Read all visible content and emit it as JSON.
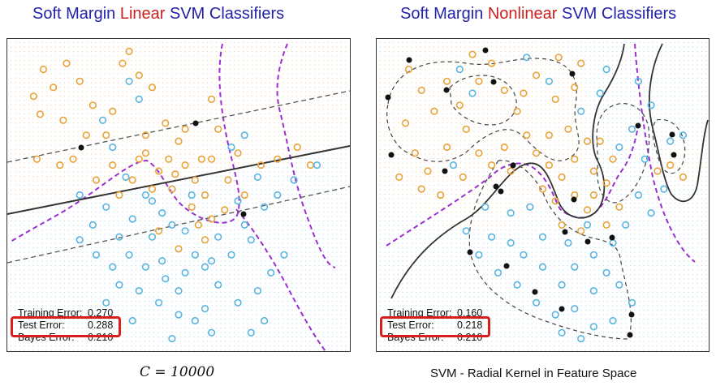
{
  "left": {
    "title_pre": "Soft Margin ",
    "title_hl": "Linear",
    "title_post": " SVM Classifiers",
    "errors": [
      {
        "label": "Training Error:",
        "value": "0.270"
      },
      {
        "label": "Test Error:",
        "value": "0.288"
      },
      {
        "label": "Bayes Error:",
        "value": "0.210"
      }
    ],
    "caption": "C = 10000"
  },
  "right": {
    "title_pre": "Soft Margin ",
    "title_hl": "Nonlinear",
    "title_post": " SVM Classifiers",
    "errors": [
      {
        "label": "Training Error:",
        "value": "0.160"
      },
      {
        "label": "Test Error:",
        "value": "0.218"
      },
      {
        "label": "Bayes Error:",
        "value": "0.210"
      }
    ],
    "caption": "SVM - Radial Kernel in Feature Space"
  },
  "colors": {
    "title": "#2222aa",
    "title_highlight": "#cc1f1f",
    "orange": "#e8a23a",
    "blue": "#5ab4e0",
    "bayes": "#9b30d0",
    "boundary": "#333333",
    "test_box": "#d81e1e"
  },
  "chart_data": [
    {
      "type": "scatter",
      "title": "Soft Margin Linear SVM Classifiers",
      "xlim": [
        0,
        1
      ],
      "ylim": [
        0,
        1
      ],
      "series": [
        {
          "name": "orange",
          "points": [
            [
              0.06,
              0.83
            ],
            [
              0.08,
              0.77
            ],
            [
              0.12,
              0.86
            ],
            [
              0.15,
              0.75
            ],
            [
              0.09,
              0.92
            ],
            [
              0.2,
              0.88
            ],
            [
              0.24,
              0.8
            ],
            [
              0.28,
              0.7
            ],
            [
              0.18,
              0.62
            ],
            [
              0.3,
              0.6
            ],
            [
              0.36,
              0.55
            ],
            [
              0.4,
              0.64
            ],
            [
              0.44,
              0.58
            ],
            [
              0.33,
              0.94
            ],
            [
              0.38,
              0.9
            ],
            [
              0.42,
              0.86
            ],
            [
              0.46,
              0.74
            ],
            [
              0.5,
              0.68
            ],
            [
              0.52,
              0.6
            ],
            [
              0.55,
              0.55
            ],
            [
              0.58,
              0.5
            ],
            [
              0.6,
              0.62
            ],
            [
              0.62,
              0.72
            ],
            [
              0.65,
              0.55
            ],
            [
              0.48,
              0.52
            ],
            [
              0.54,
              0.46
            ],
            [
              0.56,
              0.4
            ],
            [
              0.6,
              0.42
            ],
            [
              0.64,
              0.45
            ],
            [
              0.7,
              0.5
            ],
            [
              0.75,
              0.6
            ],
            [
              0.8,
              0.62
            ],
            [
              0.86,
              0.66
            ],
            [
              0.9,
              0.6
            ],
            [
              0.25,
              0.55
            ],
            [
              0.14,
              0.6
            ],
            [
              0.07,
              0.62
            ],
            [
              0.32,
              0.5
            ],
            [
              0.44,
              0.38
            ],
            [
              0.5,
              0.32
            ],
            [
              0.58,
              0.35
            ],
            [
              0.4,
              0.7
            ],
            [
              0.22,
              0.7
            ],
            [
              0.3,
              0.78
            ],
            [
              0.16,
              0.94
            ],
            [
              0.35,
              0.98
            ],
            [
              0.47,
              0.62
            ],
            [
              0.52,
              0.72
            ],
            [
              0.6,
              0.82
            ],
            [
              0.68,
              0.64
            ],
            [
              0.38,
              0.62
            ],
            [
              0.42,
              0.52
            ],
            [
              0.57,
              0.62
            ],
            [
              0.49,
              0.57
            ]
          ]
        },
        {
          "name": "blue",
          "points": [
            [
              0.35,
              0.88
            ],
            [
              0.38,
              0.82
            ],
            [
              0.27,
              0.75
            ],
            [
              0.3,
              0.66
            ],
            [
              0.34,
              0.56
            ],
            [
              0.4,
              0.5
            ],
            [
              0.45,
              0.44
            ],
            [
              0.42,
              0.36
            ],
            [
              0.48,
              0.4
            ],
            [
              0.52,
              0.38
            ],
            [
              0.36,
              0.42
            ],
            [
              0.32,
              0.36
            ],
            [
              0.28,
              0.46
            ],
            [
              0.24,
              0.4
            ],
            [
              0.2,
              0.5
            ],
            [
              0.55,
              0.3
            ],
            [
              0.6,
              0.28
            ],
            [
              0.66,
              0.3
            ],
            [
              0.7,
              0.4
            ],
            [
              0.72,
              0.35
            ],
            [
              0.76,
              0.46
            ],
            [
              0.8,
              0.5
            ],
            [
              0.85,
              0.55
            ],
            [
              0.92,
              0.6
            ],
            [
              0.78,
              0.24
            ],
            [
              0.74,
              0.18
            ],
            [
              0.68,
              0.14
            ],
            [
              0.62,
              0.2
            ],
            [
              0.58,
              0.12
            ],
            [
              0.55,
              0.08
            ],
            [
              0.5,
              0.18
            ],
            [
              0.46,
              0.22
            ],
            [
              0.4,
              0.26
            ],
            [
              0.35,
              0.3
            ],
            [
              0.3,
              0.26
            ],
            [
              0.25,
              0.3
            ],
            [
              0.2,
              0.35
            ],
            [
              0.45,
              0.28
            ],
            [
              0.38,
              0.18
            ],
            [
              0.52,
              0.24
            ],
            [
              0.62,
              0.36
            ],
            [
              0.68,
              0.48
            ],
            [
              0.74,
              0.56
            ],
            [
              0.54,
              0.5
            ],
            [
              0.66,
              0.66
            ],
            [
              0.7,
              0.7
            ],
            [
              0.76,
              0.08
            ],
            [
              0.72,
              0.04
            ],
            [
              0.82,
              0.3
            ],
            [
              0.6,
              0.04
            ],
            [
              0.44,
              0.14
            ],
            [
              0.5,
              0.1
            ],
            [
              0.48,
              0.02
            ],
            [
              0.28,
              0.14
            ],
            [
              0.32,
              0.2
            ],
            [
              0.36,
              0.08
            ],
            [
              0.42,
              0.48
            ],
            [
              0.58,
              0.26
            ]
          ]
        }
      ]
    },
    {
      "type": "scatter",
      "title": "Soft Margin Nonlinear SVM Classifiers",
      "xlim": [
        0,
        1
      ],
      "ylim": [
        0,
        1
      ],
      "series": [
        {
          "name": "orange",
          "points": [
            [
              0.08,
              0.92
            ],
            [
              0.12,
              0.85
            ],
            [
              0.16,
              0.78
            ],
            [
              0.2,
              0.88
            ],
            [
              0.24,
              0.8
            ],
            [
              0.07,
              0.74
            ],
            [
              0.1,
              0.64
            ],
            [
              0.14,
              0.58
            ],
            [
              0.2,
              0.66
            ],
            [
              0.26,
              0.72
            ],
            [
              0.3,
              0.64
            ],
            [
              0.34,
              0.6
            ],
            [
              0.3,
              0.88
            ],
            [
              0.34,
              0.94
            ],
            [
              0.28,
              0.97
            ],
            [
              0.38,
              0.85
            ],
            [
              0.42,
              0.78
            ],
            [
              0.45,
              0.7
            ],
            [
              0.48,
              0.64
            ],
            [
              0.52,
              0.6
            ],
            [
              0.5,
              0.52
            ],
            [
              0.54,
              0.48
            ],
            [
              0.56,
              0.56
            ],
            [
              0.6,
              0.62
            ],
            [
              0.6,
              0.5
            ],
            [
              0.64,
              0.45
            ],
            [
              0.66,
              0.58
            ],
            [
              0.68,
              0.68
            ],
            [
              0.58,
              0.72
            ],
            [
              0.54,
              0.82
            ],
            [
              0.6,
              0.86
            ],
            [
              0.62,
              0.94
            ],
            [
              0.55,
              0.96
            ],
            [
              0.48,
              0.9
            ],
            [
              0.44,
              0.84
            ],
            [
              0.38,
              0.66
            ],
            [
              0.4,
              0.58
            ],
            [
              0.25,
              0.56
            ],
            [
              0.18,
              0.5
            ],
            [
              0.12,
              0.52
            ],
            [
              0.05,
              0.56
            ],
            [
              0.56,
              0.4
            ],
            [
              0.62,
              0.38
            ],
            [
              0.66,
              0.5
            ],
            [
              0.7,
              0.54
            ],
            [
              0.72,
              0.62
            ],
            [
              0.74,
              0.46
            ],
            [
              0.7,
              0.4
            ],
            [
              0.64,
              0.68
            ],
            [
              0.52,
              0.7
            ],
            [
              0.86,
              0.58
            ],
            [
              0.9,
              0.6
            ],
            [
              0.94,
              0.56
            ]
          ]
        },
        {
          "name": "blue",
          "points": [
            [
              0.45,
              0.96
            ],
            [
              0.7,
              0.92
            ],
            [
              0.8,
              0.88
            ],
            [
              0.84,
              0.8
            ],
            [
              0.78,
              0.72
            ],
            [
              0.74,
              0.66
            ],
            [
              0.82,
              0.62
            ],
            [
              0.88,
              0.52
            ],
            [
              0.8,
              0.5
            ],
            [
              0.84,
              0.44
            ],
            [
              0.76,
              0.4
            ],
            [
              0.72,
              0.34
            ],
            [
              0.66,
              0.3
            ],
            [
              0.6,
              0.26
            ],
            [
              0.56,
              0.2
            ],
            [
              0.5,
              0.26
            ],
            [
              0.44,
              0.3
            ],
            [
              0.4,
              0.34
            ],
            [
              0.34,
              0.36
            ],
            [
              0.3,
              0.3
            ],
            [
              0.36,
              0.24
            ],
            [
              0.42,
              0.2
            ],
            [
              0.48,
              0.14
            ],
            [
              0.54,
              0.1
            ],
            [
              0.6,
              0.12
            ],
            [
              0.66,
              0.18
            ],
            [
              0.7,
              0.24
            ],
            [
              0.74,
              0.2
            ],
            [
              0.78,
              0.14
            ],
            [
              0.72,
              0.08
            ],
            [
              0.66,
              0.06
            ],
            [
              0.62,
              0.02
            ],
            [
              0.56,
              0.04
            ],
            [
              0.46,
              0.46
            ],
            [
              0.4,
              0.44
            ],
            [
              0.5,
              0.36
            ],
            [
              0.58,
              0.34
            ],
            [
              0.64,
              0.4
            ],
            [
              0.26,
              0.38
            ],
            [
              0.32,
              0.46
            ],
            [
              0.52,
              0.88
            ],
            [
              0.62,
              0.78
            ],
            [
              0.28,
              0.84
            ],
            [
              0.24,
              0.92
            ],
            [
              0.22,
              0.6
            ],
            [
              0.9,
              0.68
            ],
            [
              0.94,
              0.7
            ],
            [
              0.68,
              0.84
            ]
          ]
        }
      ]
    }
  ]
}
